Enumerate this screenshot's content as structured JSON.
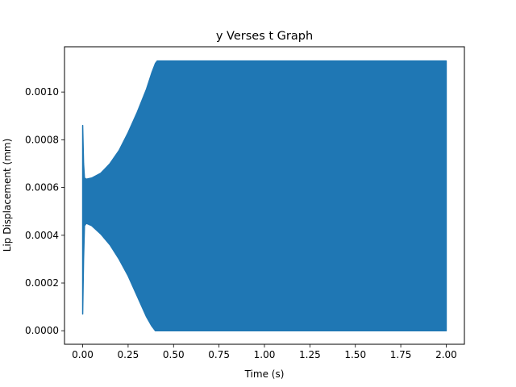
{
  "chart_data": {
    "type": "area",
    "title": "y Verses t Graph",
    "xlabel": "Time (s)",
    "ylabel": "Lip Displacement (mm)",
    "xlim": [
      -0.1,
      2.1
    ],
    "ylim": [
      -5.66e-05,
      0.0011896
    ],
    "x_ticks": [
      0.0,
      0.25,
      0.5,
      0.75,
      1.0,
      1.25,
      1.5,
      1.75,
      2.0
    ],
    "x_tick_labels": [
      "0.00",
      "0.25",
      "0.50",
      "0.75",
      "1.00",
      "1.25",
      "1.50",
      "1.75",
      "2.00"
    ],
    "y_ticks": [
      0.0,
      0.0002,
      0.0004,
      0.0006,
      0.0008,
      0.001
    ],
    "y_tick_labels": [
      "0.0000",
      "0.0002",
      "0.0004",
      "0.0006",
      "0.0008",
      "0.0010"
    ],
    "grid": false,
    "series_color": "#1f77b4",
    "series": [
      {
        "kind": "oscillation-envelope",
        "x": [
          0.0,
          0.005,
          0.01,
          0.02,
          0.05,
          0.1,
          0.15,
          0.2,
          0.25,
          0.3,
          0.35,
          0.38,
          0.4,
          0.41,
          1.0,
          1.5,
          2.0
        ],
        "upper": [
          0.00086,
          0.0007,
          0.00064,
          0.000635,
          0.00064,
          0.00066,
          0.0007,
          0.000755,
          0.00083,
          0.000915,
          0.00101,
          0.00108,
          0.00112,
          0.00113,
          0.00113,
          0.00113,
          0.00113
        ],
        "lower": [
          7e-05,
          0.0003,
          0.00044,
          0.00045,
          0.00044,
          0.000405,
          0.00036,
          0.0003,
          0.00023,
          0.000145,
          6e-05,
          2e-05,
          0.0,
          0.0,
          0.0,
          0.0,
          0.0
        ]
      }
    ]
  }
}
